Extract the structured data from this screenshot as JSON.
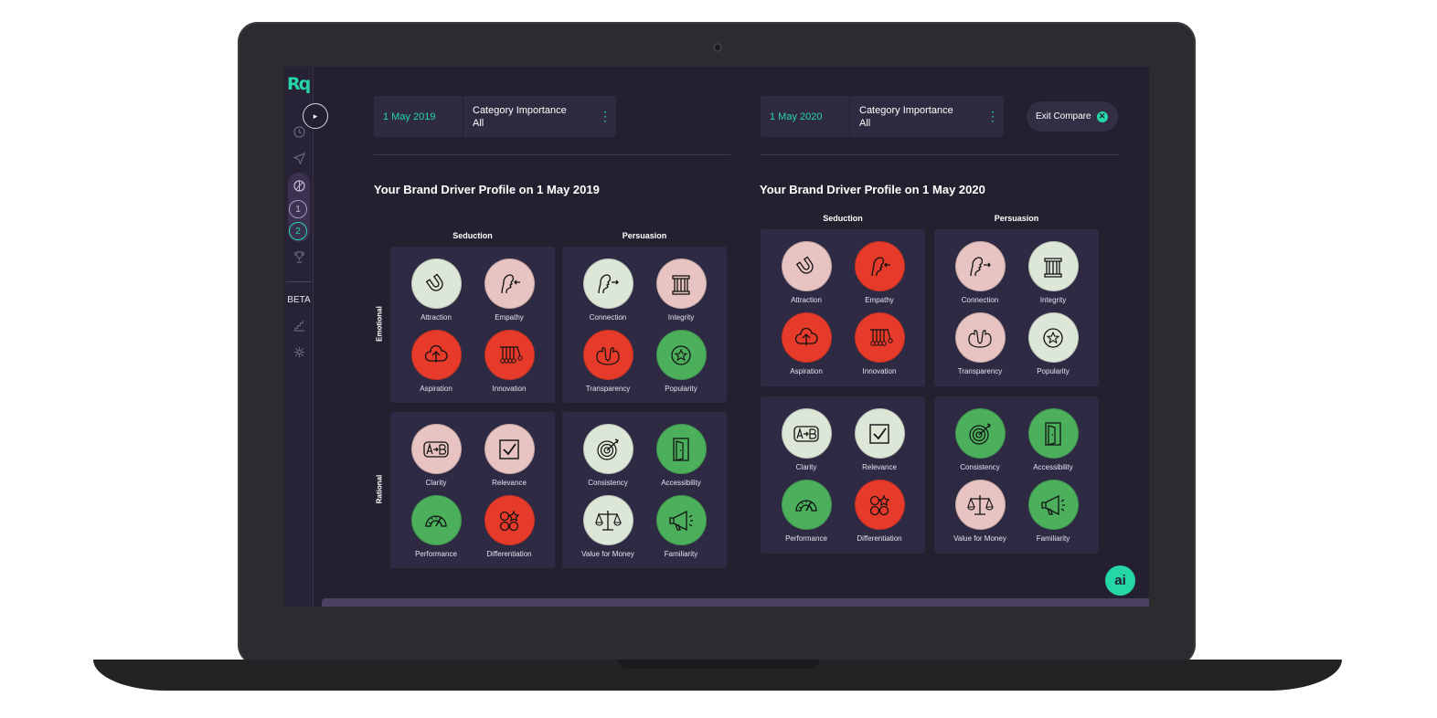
{
  "app": {
    "logo_text": "Rq",
    "beta_label": "BETA",
    "ai_label": "ai",
    "expand_symbol": "▸"
  },
  "sidebar": {
    "steps": [
      "1",
      "2"
    ]
  },
  "left": {
    "filter": {
      "date": "1 May 2019",
      "category_title": "Category Importance",
      "category_value": "All",
      "more": "⋮"
    },
    "title": "Your Brand Driver Profile on 1 May 2019"
  },
  "right": {
    "filter": {
      "date": "1 May 2020",
      "category_title": "Category Importance",
      "category_value": "All",
      "more": "⋮"
    },
    "title": "Your Brand Driver Profile on 1 May 2020"
  },
  "exit_compare": {
    "label": "Exit Compare",
    "close_symbol": "✕"
  },
  "headers": {
    "seduction": "Seduction",
    "persuasion": "Persuasion",
    "emotional": "Emotional",
    "rational": "Rational"
  },
  "colors": {
    "accent": "#25d7a7",
    "pink": "#e7c4c1",
    "red": "#e63b2a",
    "green": "#4caf5c",
    "pale": "#dce7d8"
  },
  "left_drivers": {
    "attraction": {
      "label": "Attraction",
      "status": "pale"
    },
    "empathy": {
      "label": "Empathy",
      "status": "pink"
    },
    "aspiration": {
      "label": "Aspiration",
      "status": "red"
    },
    "innovation": {
      "label": "Innovation",
      "status": "red"
    },
    "connection": {
      "label": "Connection",
      "status": "pale"
    },
    "integrity": {
      "label": "Integrity",
      "status": "pink"
    },
    "transparency": {
      "label": "Transparency",
      "status": "red"
    },
    "popularity": {
      "label": "Popularity",
      "status": "green"
    },
    "clarity": {
      "label": "Clarity",
      "status": "pink"
    },
    "relevance": {
      "label": "Relevance",
      "status": "pink"
    },
    "performance": {
      "label": "Performance",
      "status": "green"
    },
    "differentiation": {
      "label": "Differentiation",
      "status": "red"
    },
    "consistency": {
      "label": "Consistency",
      "status": "pale"
    },
    "accessibility": {
      "label": "Accessibility",
      "status": "green"
    },
    "value_for_money": {
      "label": "Value for Money",
      "status": "pale"
    },
    "familiarity": {
      "label": "Familiarity",
      "status": "green"
    }
  },
  "right_drivers": {
    "attraction": {
      "label": "Attraction",
      "status": "pink"
    },
    "empathy": {
      "label": "Empathy",
      "status": "red"
    },
    "aspiration": {
      "label": "Aspiration",
      "status": "red"
    },
    "innovation": {
      "label": "Innovation",
      "status": "red"
    },
    "connection": {
      "label": "Connection",
      "status": "pink"
    },
    "integrity": {
      "label": "Integrity",
      "status": "pale"
    },
    "transparency": {
      "label": "Transparency",
      "status": "pink"
    },
    "popularity": {
      "label": "Popularity",
      "status": "pale"
    },
    "clarity": {
      "label": "Clarity",
      "status": "pale"
    },
    "relevance": {
      "label": "Relevance",
      "status": "pale"
    },
    "performance": {
      "label": "Performance",
      "status": "green"
    },
    "differentiation": {
      "label": "Differentiation",
      "status": "red"
    },
    "consistency": {
      "label": "Consistency",
      "status": "green"
    },
    "accessibility": {
      "label": "Accessibility",
      "status": "green"
    },
    "value_for_money": {
      "label": "Value for Money",
      "status": "pink"
    },
    "familiarity": {
      "label": "Familiarity",
      "status": "green"
    }
  }
}
